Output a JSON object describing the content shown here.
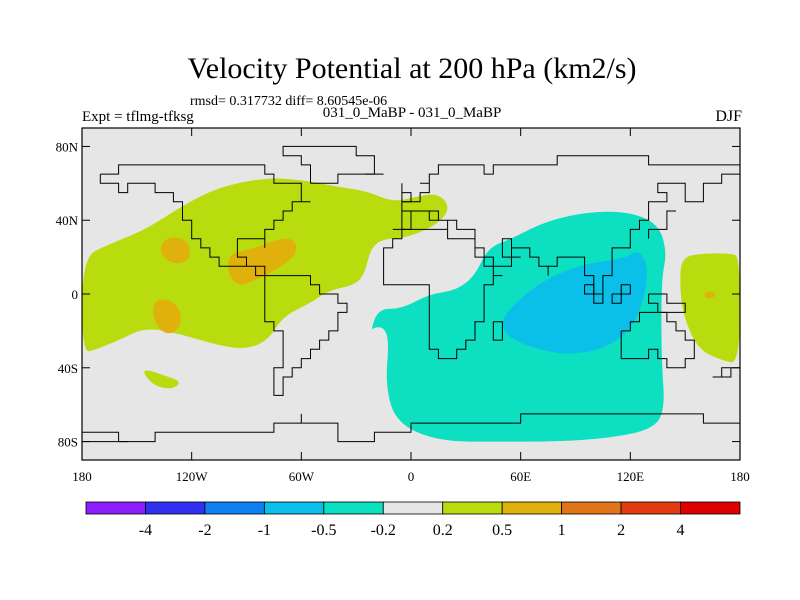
{
  "header": {
    "title": "Velocity Potential at 200 hPa (km2/s)",
    "stats": "rmsd= 0.317732 diff= 8.60545e-06",
    "experiment": "Expt = tflmg-tfksg",
    "runs": "031_0_MaBP - 031_0_MaBP",
    "season": "DJF"
  },
  "map": {
    "lon_range": [
      -180,
      180
    ],
    "lat_range": [
      -90,
      90
    ],
    "lat_ticks": [
      {
        "value": 80,
        "label": "80N"
      },
      {
        "value": 40,
        "label": "40N"
      },
      {
        "value": 0,
        "label": "0"
      },
      {
        "value": -40,
        "label": "40S"
      },
      {
        "value": -80,
        "label": "80S"
      }
    ],
    "lon_ticks": [
      {
        "value": -180,
        "label": "180"
      },
      {
        "value": -120,
        "label": "120W"
      },
      {
        "value": -60,
        "label": "60W"
      },
      {
        "value": 0,
        "label": "0"
      },
      {
        "value": 60,
        "label": "60E"
      },
      {
        "value": 120,
        "label": "120E"
      },
      {
        "value": 180,
        "label": "180"
      }
    ],
    "fields": [
      {
        "name": "positive-anomaly-west",
        "class": "0.2 to 0.5",
        "outline": [
          [
            -180,
            20
          ],
          [
            -165,
            27
          ],
          [
            -145,
            35
          ],
          [
            -125,
            48
          ],
          [
            -105,
            58
          ],
          [
            -80,
            63
          ],
          [
            -60,
            62
          ],
          [
            -40,
            58
          ],
          [
            -25,
            56
          ],
          [
            -10,
            50
          ],
          [
            0,
            52
          ],
          [
            15,
            55
          ],
          [
            22,
            46
          ],
          [
            12,
            36
          ],
          [
            -5,
            30
          ],
          [
            -15,
            30
          ],
          [
            -22,
            25
          ],
          [
            -25,
            12
          ],
          [
            -30,
            5
          ],
          [
            -45,
            2
          ],
          [
            -55,
            -5
          ],
          [
            -70,
            -12
          ],
          [
            -78,
            -25
          ],
          [
            -90,
            -30
          ],
          [
            -105,
            -28
          ],
          [
            -125,
            -22
          ],
          [
            -145,
            -18
          ],
          [
            -160,
            -25
          ],
          [
            -172,
            -30
          ],
          [
            -180,
            -32
          ]
        ]
      },
      {
        "name": "positive-anomaly-southwest-lobe",
        "class": "0.2 to 0.5",
        "outline": [
          [
            -148,
            -40
          ],
          [
            -135,
            -44
          ],
          [
            -125,
            -48
          ],
          [
            -132,
            -52
          ],
          [
            -142,
            -49
          ]
        ]
      },
      {
        "name": "positive-anomaly-east",
        "class": "0.2 to 0.5",
        "outline": [
          [
            148,
            20
          ],
          [
            160,
            22
          ],
          [
            175,
            22
          ],
          [
            180,
            20
          ],
          [
            180,
            -38
          ],
          [
            170,
            -36
          ],
          [
            157,
            -30
          ],
          [
            149,
            -12
          ],
          [
            147,
            5
          ]
        ]
      },
      {
        "name": "positive-anomaly-centre-a",
        "class": "0.5 to 1",
        "outline": [
          [
            -135,
            30
          ],
          [
            -127,
            31
          ],
          [
            -121,
            27
          ],
          [
            -121,
            18
          ],
          [
            -130,
            16
          ],
          [
            -138,
            22
          ]
        ]
      },
      {
        "name": "positive-anomaly-centre-b",
        "class": "0.5 to 1",
        "outline": [
          [
            -100,
            22
          ],
          [
            -88,
            24
          ],
          [
            -72,
            30
          ],
          [
            -64,
            30
          ],
          [
            -62,
            22
          ],
          [
            -72,
            14
          ],
          [
            -84,
            8
          ],
          [
            -94,
            4
          ],
          [
            -100,
            10
          ]
        ]
      },
      {
        "name": "positive-anomaly-centre-c",
        "class": "0.5 to 1",
        "outline": [
          [
            -138,
            -2
          ],
          [
            -128,
            -5
          ],
          [
            -125,
            -15
          ],
          [
            -130,
            -22
          ],
          [
            -138,
            -20
          ],
          [
            -142,
            -8
          ]
        ]
      },
      {
        "name": "positive-anomaly-centre-d",
        "class": "0.5 to 1",
        "outline": [
          [
            162,
            2
          ],
          [
            168,
            0
          ],
          [
            163,
            -3
          ],
          [
            160,
            -1
          ]
        ]
      },
      {
        "name": "negative-anomaly-indian-ocean",
        "class": "-0.5 to -0.2",
        "outline": [
          [
            42,
            25
          ],
          [
            55,
            30
          ],
          [
            75,
            40
          ],
          [
            100,
            45
          ],
          [
            122,
            44
          ],
          [
            136,
            37
          ],
          [
            140,
            22
          ],
          [
            137,
            8
          ],
          [
            137,
            -35
          ],
          [
            139,
            -62
          ],
          [
            133,
            -73
          ],
          [
            110,
            -78
          ],
          [
            80,
            -80
          ],
          [
            50,
            -80
          ],
          [
            15,
            -80
          ],
          [
            -8,
            -70
          ],
          [
            -14,
            -50
          ],
          [
            -12,
            -25
          ],
          [
            -15,
            -18
          ],
          [
            -20,
            -18
          ],
          [
            -22,
            -20
          ],
          [
            -18,
            -8
          ],
          [
            -5,
            -8
          ],
          [
            10,
            0
          ],
          [
            25,
            2
          ],
          [
            35,
            10
          ]
        ]
      },
      {
        "name": "negative-anomaly-core",
        "class": "-1 to -0.5",
        "outline": [
          [
            50,
            -12
          ],
          [
            68,
            5
          ],
          [
            90,
            15
          ],
          [
            107,
            18
          ],
          [
            118,
            20
          ],
          [
            125,
            24
          ],
          [
            130,
            14
          ],
          [
            127,
            -5
          ],
          [
            120,
            -20
          ],
          [
            105,
            -30
          ],
          [
            85,
            -33
          ],
          [
            70,
            -30
          ],
          [
            58,
            -26
          ],
          [
            50,
            -20
          ]
        ]
      }
    ]
  },
  "colorbar": {
    "colors": [
      "#8c1eff",
      "#3030ee",
      "#0f80f0",
      "#0ac0e8",
      "#0ce0c0",
      "#e6e6e6",
      "#b8dc0e",
      "#e0b00c",
      "#e07418",
      "#e03c10",
      "#e00000"
    ],
    "labels": [
      "-4",
      "-2",
      "-1",
      "-0.5",
      "-0.2",
      "0.2",
      "0.5",
      "1",
      "2",
      "4"
    ]
  }
}
